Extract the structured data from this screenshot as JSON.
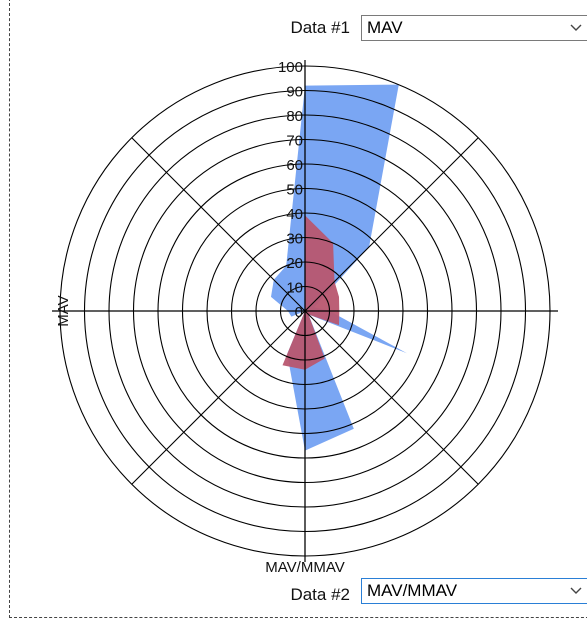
{
  "data1": {
    "label": "Data #1",
    "selected": "MAV"
  },
  "data2": {
    "label": "Data #2",
    "selected": "MAV/MMAV"
  },
  "chart_data": {
    "type": "radar",
    "max": 100,
    "rings": [
      0,
      10,
      20,
      30,
      40,
      50,
      60,
      70,
      80,
      90,
      100
    ],
    "axis_label_left": "MAV",
    "axis_label_bottom": "MAV/MMAV",
    "grid": true,
    "series": [
      {
        "color": "#6f9ef2",
        "values": [
          92,
          100,
          37,
          4,
          10,
          45,
          2,
          52,
          57,
          19,
          0,
          6,
          7,
          15,
          18,
          20
        ]
      },
      {
        "color": "#b8566f",
        "values": [
          39,
          30,
          17,
          15,
          14,
          15,
          2,
          21,
          24,
          24,
          0,
          0,
          0,
          0,
          0,
          0
        ]
      }
    ]
  }
}
